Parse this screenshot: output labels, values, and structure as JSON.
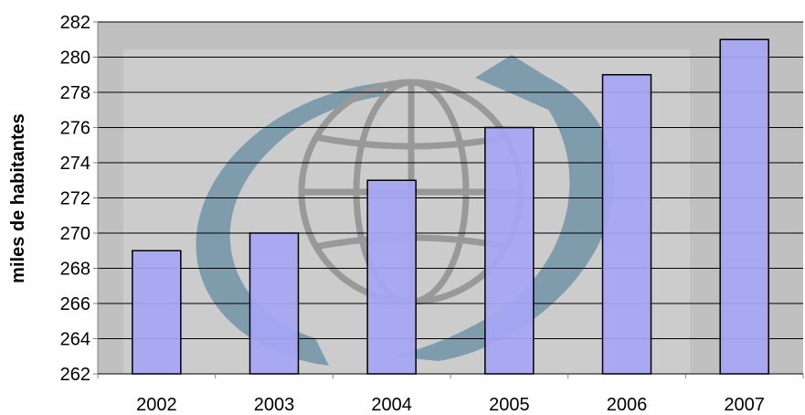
{
  "chart_data": {
    "type": "bar",
    "title": "",
    "xlabel": "",
    "ylabel": "miles de habitantes",
    "categories": [
      "2002",
      "2003",
      "2004",
      "2005",
      "2006",
      "2007"
    ],
    "values": [
      269,
      270,
      273,
      276,
      279,
      281
    ],
    "ylim": [
      262,
      282
    ],
    "yticks": [
      262,
      264,
      266,
      268,
      270,
      272,
      274,
      276,
      278,
      280,
      282
    ],
    "grid": true,
    "legend": "none",
    "colors": {
      "bar_fill": "#a6a6f5",
      "bar_stroke": "#000000",
      "plot_background": "#c0c0c0",
      "watermark_globe": "#7a7a7a",
      "watermark_arrow": "#4f7f9a"
    }
  }
}
